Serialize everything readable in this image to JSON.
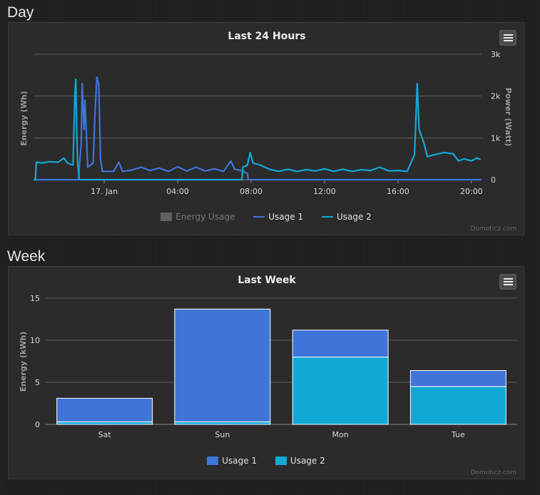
{
  "sections": {
    "day_label": "Day",
    "week_label": "Week"
  },
  "credit": "Domoticz.com",
  "colors": {
    "usage1": "#3f74d9",
    "usage2": "#11a8d6",
    "energy": "#606060"
  },
  "chart_data": [
    {
      "type": "line",
      "title": "Last 24 Hours",
      "ylabel_left": "Energy (Wh)",
      "ylabel_right": "Power (Watt)",
      "x_ticks": [
        "17. Jan",
        "04:00",
        "08:00",
        "12:00",
        "16:00",
        "20:00"
      ],
      "x_tick_hours": [
        0,
        4,
        8,
        12,
        16,
        20
      ],
      "x_range_hours": [
        -3.85,
        20.55
      ],
      "y_right_ticks": [
        "0",
        "1k",
        "2k",
        "3k"
      ],
      "y_right_tick_values": [
        0,
        1000,
        2000,
        3000
      ],
      "ylim_right": [
        0,
        3000
      ],
      "legend": [
        "Energy Usage",
        "Usage 1",
        "Usage 2"
      ],
      "legend_hidden": [
        "Energy Usage"
      ],
      "grid": true,
      "series": [
        {
          "name": "Usage 1",
          "color": "#3f74d9",
          "points": [
            [
              -3.85,
              0
            ],
            [
              -1.4,
              0
            ],
            [
              -1.35,
              350
            ],
            [
              -1.25,
              850
            ],
            [
              -1.2,
              2300
            ],
            [
              -1.1,
              1200
            ],
            [
              -1.05,
              1900
            ],
            [
              -0.95,
              900
            ],
            [
              -0.9,
              300
            ],
            [
              -0.6,
              400
            ],
            [
              -0.5,
              1600
            ],
            [
              -0.4,
              2450
            ],
            [
              -0.3,
              2300
            ],
            [
              -0.2,
              500
            ],
            [
              -0.1,
              200
            ],
            [
              0.5,
              200
            ],
            [
              0.8,
              420
            ],
            [
              1.0,
              200
            ],
            [
              1.5,
              230
            ],
            [
              2.0,
              300
            ],
            [
              2.5,
              220
            ],
            [
              3.0,
              280
            ],
            [
              3.5,
              200
            ],
            [
              4.0,
              310
            ],
            [
              4.5,
              210
            ],
            [
              5.0,
              300
            ],
            [
              5.5,
              210
            ],
            [
              6.0,
              260
            ],
            [
              6.5,
              200
            ],
            [
              6.9,
              450
            ],
            [
              7.1,
              250
            ],
            [
              7.5,
              220
            ],
            [
              7.8,
              150
            ],
            [
              7.85,
              0
            ],
            [
              20.55,
              0
            ]
          ]
        },
        {
          "name": "Usage 2",
          "color": "#11a8d6",
          "points": [
            [
              -3.85,
              0
            ],
            [
              -3.75,
              0
            ],
            [
              -3.7,
              420
            ],
            [
              -3.4,
              400
            ],
            [
              -3.0,
              430
            ],
            [
              -2.5,
              420
            ],
            [
              -2.2,
              520
            ],
            [
              -2.0,
              400
            ],
            [
              -1.7,
              350
            ],
            [
              -1.6,
              2000
            ],
            [
              -1.55,
              2400
            ],
            [
              -1.5,
              1200
            ],
            [
              -1.45,
              400
            ],
            [
              -1.35,
              0
            ],
            [
              7.5,
              0
            ],
            [
              7.55,
              300
            ],
            [
              7.8,
              350
            ],
            [
              7.95,
              650
            ],
            [
              8.1,
              400
            ],
            [
              8.5,
              350
            ],
            [
              9.0,
              250
            ],
            [
              9.5,
              200
            ],
            [
              10.0,
              250
            ],
            [
              10.5,
              200
            ],
            [
              11.0,
              240
            ],
            [
              11.5,
              210
            ],
            [
              12.0,
              260
            ],
            [
              12.5,
              200
            ],
            [
              13.0,
              250
            ],
            [
              13.5,
              200
            ],
            [
              14.0,
              240
            ],
            [
              14.5,
              220
            ],
            [
              15.0,
              300
            ],
            [
              15.5,
              210
            ],
            [
              16.0,
              220
            ],
            [
              16.5,
              200
            ],
            [
              16.9,
              600
            ],
            [
              17.05,
              2300
            ],
            [
              17.15,
              1200
            ],
            [
              17.4,
              900
            ],
            [
              17.6,
              550
            ],
            [
              18.0,
              600
            ],
            [
              18.5,
              650
            ],
            [
              19.0,
              620
            ],
            [
              19.3,
              450
            ],
            [
              19.6,
              500
            ],
            [
              20.0,
              450
            ],
            [
              20.3,
              520
            ],
            [
              20.5,
              480
            ]
          ]
        }
      ]
    },
    {
      "type": "bar",
      "stacked": true,
      "title": "Last Week",
      "ylabel": "Energy (kWh)",
      "categories": [
        "Sat",
        "Sun",
        "Mon",
        "Tue"
      ],
      "ylim": [
        0,
        15
      ],
      "y_ticks": [
        "0",
        "5",
        "10",
        "15"
      ],
      "y_tick_values": [
        0,
        5,
        10,
        15
      ],
      "legend": [
        "Usage 1",
        "Usage 2"
      ],
      "grid": true,
      "series": [
        {
          "name": "Usage 2",
          "color": "#11a8d6",
          "values": [
            0.3,
            0.3,
            8.0,
            4.5
          ]
        },
        {
          "name": "Usage 1",
          "color": "#3f74d9",
          "values": [
            2.8,
            13.4,
            3.2,
            1.9
          ]
        }
      ]
    }
  ]
}
